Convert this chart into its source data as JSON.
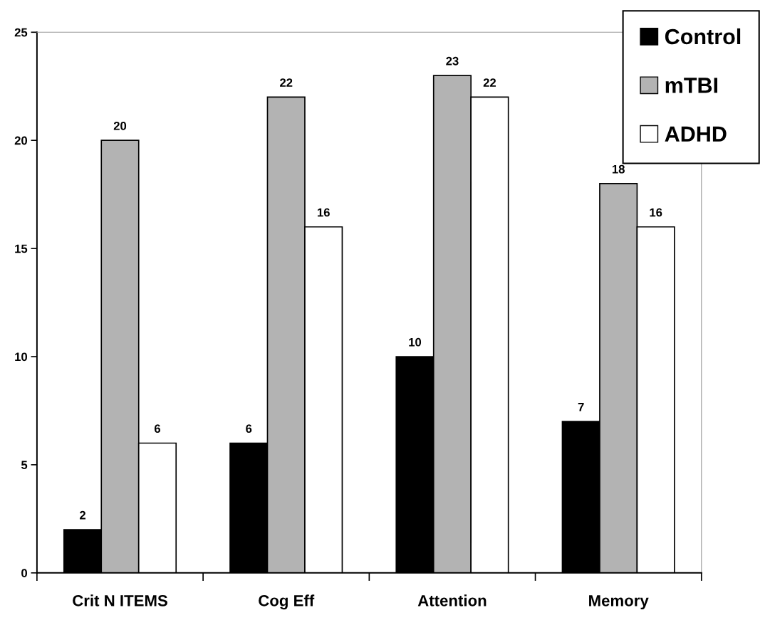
{
  "chart_data": {
    "type": "bar",
    "categories": [
      "Crit N ITEMS",
      "Cog Eff",
      "Attention",
      "Memory"
    ],
    "series": [
      {
        "name": "Control",
        "color": "#000000",
        "values": [
          2,
          6,
          10,
          7
        ]
      },
      {
        "name": "mTBI",
        "color": "#b3b3b3",
        "values": [
          20,
          22,
          23,
          18
        ]
      },
      {
        "name": "ADHD",
        "color": "#ffffff",
        "values": [
          6,
          16,
          22,
          16
        ]
      }
    ],
    "ylim": [
      0,
      25
    ],
    "yticks": [
      0,
      5,
      10,
      15,
      20,
      25
    ],
    "data_labels": true,
    "grid": false,
    "legend": "top right"
  }
}
